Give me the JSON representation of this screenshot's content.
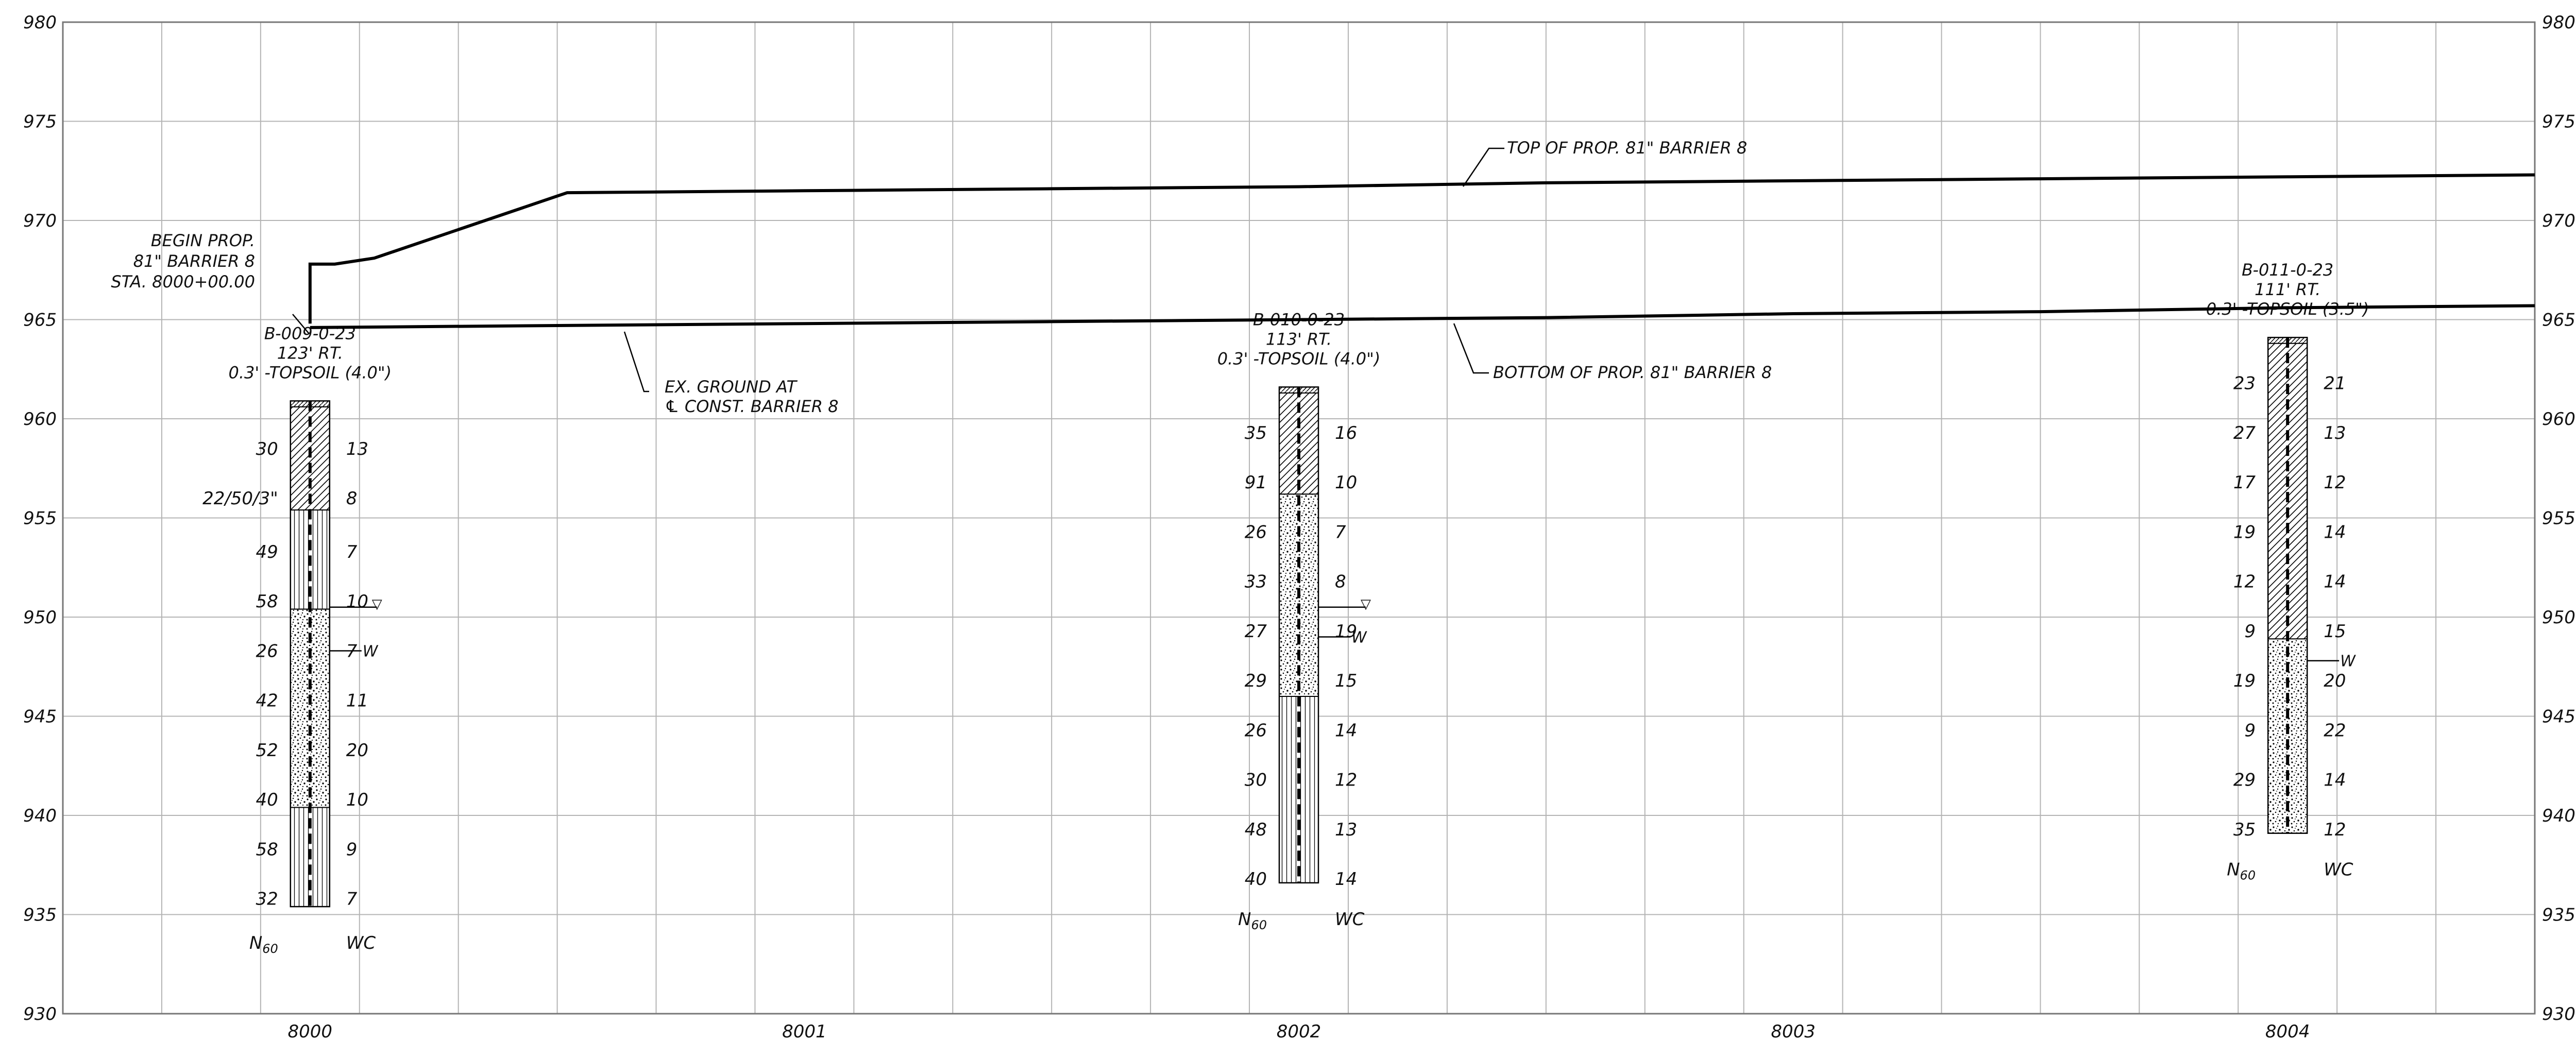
{
  "axes": {
    "elevation_min": 930,
    "elevation_max": 980,
    "elevation_step": 5,
    "station_min": 7999.5,
    "station_max": 8004.5,
    "station_grid_step": 0.2,
    "station_labels": [
      "8000",
      "8001",
      "8002",
      "8003",
      "8004"
    ]
  },
  "colors": {
    "grid": "#b4b4b4",
    "frame": "#777777",
    "ink": "#000000"
  },
  "profiles": {
    "top_of_barrier": {
      "points": [
        [
          8000.0,
          964.8
        ],
        [
          8000.0,
          967.8
        ],
        [
          8000.05,
          967.8
        ],
        [
          8000.13,
          968.1
        ],
        [
          8000.52,
          971.4
        ],
        [
          8001.0,
          971.5
        ],
        [
          8001.5,
          971.6
        ],
        [
          8002.0,
          971.7
        ],
        [
          8002.5,
          971.9
        ],
        [
          8003.0,
          972.0
        ],
        [
          8003.5,
          972.1
        ],
        [
          8004.0,
          972.2
        ],
        [
          8004.5,
          972.3
        ]
      ]
    },
    "bottom_of_barrier": {
      "points": [
        [
          8000.0,
          964.6
        ],
        [
          8000.5,
          964.7
        ],
        [
          8001.0,
          964.8
        ],
        [
          8001.5,
          964.9
        ],
        [
          8002.0,
          965.0
        ],
        [
          8002.5,
          965.1
        ],
        [
          8003.0,
          965.3
        ],
        [
          8003.5,
          965.4
        ],
        [
          8004.0,
          965.6
        ],
        [
          8004.5,
          965.7
        ]
      ]
    }
  },
  "annotations": {
    "begin": {
      "lines": [
        "BEGIN PROP.",
        "81\" BARRIER 8",
        "STA. 8000+00.00"
      ]
    },
    "top_barrier": {
      "text": "TOP OF PROP. 81\" BARRIER 8"
    },
    "bottom_barrier": {
      "text": "BOTTOM OF PROP. 81\" BARRIER 8"
    },
    "ex_ground": {
      "lines": [
        "EX. GROUND AT",
        "℄ CONST. BARRIER 8"
      ]
    }
  },
  "borings": [
    {
      "station": 8000,
      "header": [
        "B-009-0-23",
        "123' RT.",
        "0.3' -TOPSOIL (4.0\")"
      ],
      "top_elevation": 960.9,
      "bottom_elevation": 935.4,
      "layers": [
        {
          "from": 960.9,
          "to": 960.6,
          "pattern": "topsoil"
        },
        {
          "from": 960.6,
          "to": 955.4,
          "pattern": "hatch"
        },
        {
          "from": 955.4,
          "to": 950.4,
          "pattern": "vertical"
        },
        {
          "from": 950.4,
          "to": 940.4,
          "pattern": "stipple"
        },
        {
          "from": 940.4,
          "to": 935.4,
          "pattern": "vertical"
        }
      ],
      "n60": [
        "30",
        "22/50/3\"",
        "49",
        "58",
        "26",
        "42",
        "52",
        "40",
        "58",
        "32"
      ],
      "wc": [
        "13",
        "8",
        "7",
        "10",
        "7",
        "11",
        "20",
        "10",
        "9",
        "7"
      ],
      "sample_elevations": [
        958.5,
        956.0,
        953.3,
        950.8,
        948.3,
        945.8,
        943.3,
        940.8,
        938.3,
        935.8
      ],
      "groundwater": {
        "elevation": 950.5,
        "symbol": "▽"
      },
      "seepage": {
        "elevation": 948.3,
        "symbol": "W"
      },
      "n60_label": "N",
      "n60_sub": "60",
      "wc_label": "WC"
    },
    {
      "station": 8002,
      "header": [
        "B-010-0-23",
        "113' RT.",
        "0.3' -TOPSOIL (4.0\")"
      ],
      "top_elevation": 961.6,
      "bottom_elevation": 936.6,
      "layers": [
        {
          "from": 961.6,
          "to": 961.3,
          "pattern": "topsoil"
        },
        {
          "from": 961.3,
          "to": 956.2,
          "pattern": "hatch"
        },
        {
          "from": 956.2,
          "to": 946.0,
          "pattern": "stipple"
        },
        {
          "from": 946.0,
          "to": 936.6,
          "pattern": "vertical"
        }
      ],
      "n60": [
        "35",
        "91",
        "26",
        "33",
        "27",
        "29",
        "26",
        "30",
        "48",
        "40"
      ],
      "wc": [
        "16",
        "10",
        "7",
        "8",
        "19",
        "15",
        "14",
        "12",
        "13",
        "14"
      ],
      "sample_elevations": [
        959.3,
        956.8,
        954.3,
        951.8,
        949.3,
        946.8,
        944.3,
        941.8,
        939.3,
        936.8
      ],
      "groundwater": {
        "elevation": 950.5,
        "symbol": "▽"
      },
      "seepage": {
        "elevation": 949.0,
        "symbol": "W"
      },
      "n60_label": "N",
      "n60_sub": "60",
      "wc_label": "WC"
    },
    {
      "station": 8004,
      "header": [
        "B-011-0-23",
        "111' RT.",
        "0.3' -TOPSOIL (3.5\")"
      ],
      "top_elevation": 964.1,
      "bottom_elevation": 939.1,
      "layers": [
        {
          "from": 964.1,
          "to": 963.8,
          "pattern": "topsoil"
        },
        {
          "from": 963.8,
          "to": 948.9,
          "pattern": "hatch"
        },
        {
          "from": 948.9,
          "to": 939.1,
          "pattern": "stipple"
        }
      ],
      "n60": [
        "23",
        "27",
        "17",
        "19",
        "12",
        "9",
        "19",
        "9",
        "29",
        "35"
      ],
      "wc": [
        "21",
        "13",
        "12",
        "14",
        "14",
        "15",
        "20",
        "22",
        "14",
        "12"
      ],
      "sample_elevations": [
        961.8,
        959.3,
        956.8,
        954.3,
        951.8,
        949.3,
        946.8,
        944.3,
        941.8,
        939.3
      ],
      "groundwater": null,
      "seepage": {
        "elevation": 947.8,
        "symbol": "W"
      },
      "n60_label": "N",
      "n60_sub": "60",
      "wc_label": "WC"
    }
  ]
}
